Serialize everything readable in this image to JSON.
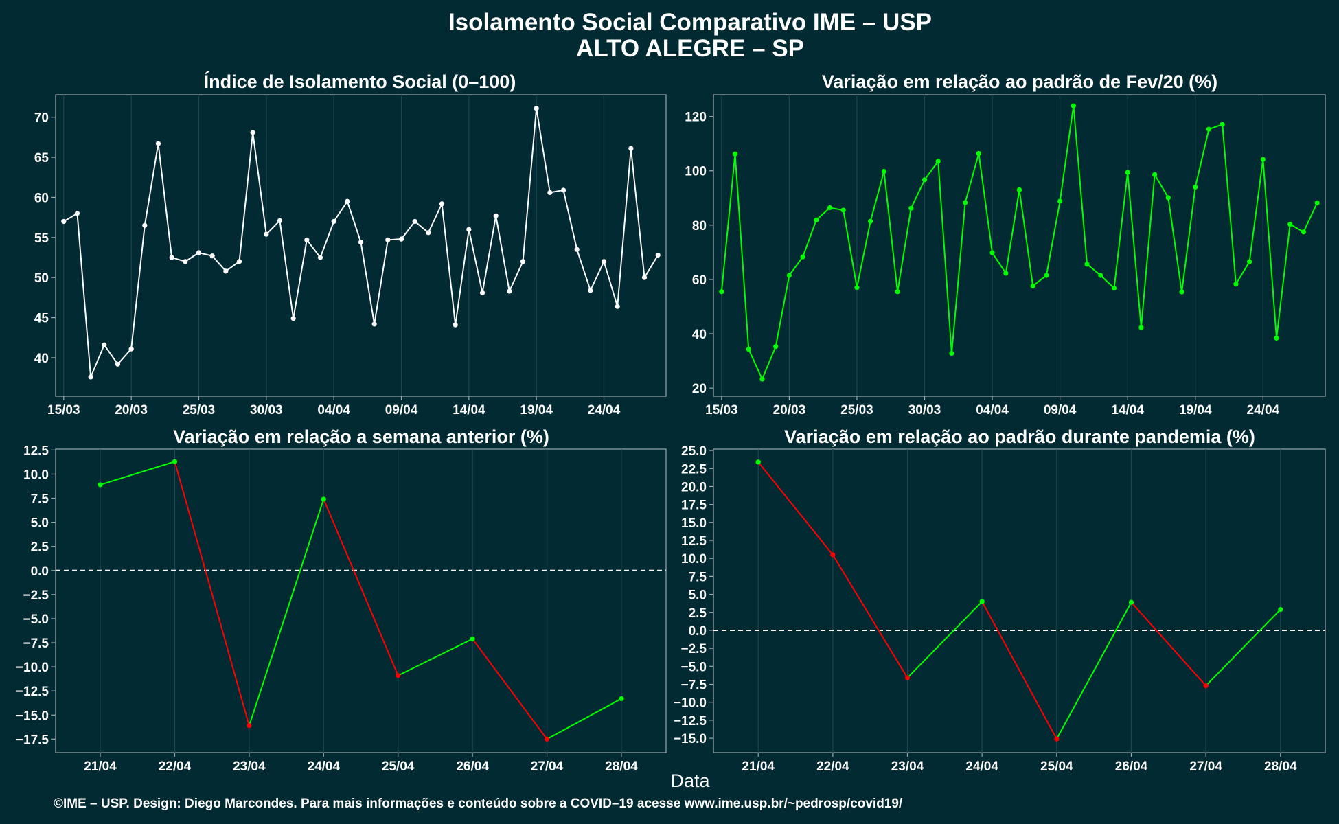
{
  "figure": {
    "title_line1": "Isolamento Social Comparativo IME – USP",
    "title_line2": "ALTO ALEGRE – SP",
    "xlabel": "Data",
    "caption": "©IME – USP. Design: Diego Marcondes. Para mais informações e conteúdo sobre a COVID–19 acesse www.ime.usp.br/~pedrosp/covid19/"
  },
  "colors": {
    "background": "#022a33",
    "white_line": "#ffffff",
    "green": "#00ff00",
    "red": "#ff0000"
  },
  "chart_data": [
    {
      "type": "line",
      "title": "Índice de Isolamento Social (0–100)",
      "xlabel": "",
      "ylabel": "",
      "x_start": "15/03",
      "x_ticks": [
        "15/03",
        "20/03",
        "25/03",
        "30/03",
        "04/04",
        "09/04",
        "14/04",
        "19/04",
        "24/04"
      ],
      "x_tick_days": [
        0,
        5,
        10,
        15,
        20,
        25,
        30,
        35,
        40
      ],
      "xlim": [
        -0.6,
        44.6
      ],
      "ylim": [
        35.2,
        72.8
      ],
      "y_ticks": [
        "40",
        "45",
        "50",
        "55",
        "60",
        "65",
        "70"
      ],
      "y_tick_values": [
        40,
        45,
        50,
        55,
        60,
        65,
        70
      ],
      "grid": true,
      "legend": "none",
      "series": [
        {
          "color": "#ffffff",
          "values": [
            57.0,
            58.0,
            37.6,
            41.6,
            39.2,
            41.1,
            56.5,
            66.7,
            52.5,
            52.0,
            53.1,
            52.7,
            50.8,
            52.0,
            68.1,
            55.4,
            57.1,
            44.9,
            54.7,
            52.5,
            57.0,
            59.5,
            54.4,
            44.2,
            54.7,
            54.8,
            57.0,
            55.6,
            59.2,
            44.1,
            56.0,
            48.1,
            57.7,
            48.3,
            52.0,
            71.1,
            60.6,
            60.9,
            53.5,
            48.4,
            52.0,
            46.4,
            66.1,
            50.0,
            52.8
          ]
        }
      ]
    },
    {
      "type": "line",
      "title": "Variação em relação ao padrão de Fev/20 (%)",
      "xlabel": "",
      "ylabel": "",
      "x_start": "15/03",
      "x_ticks": [
        "15/03",
        "20/03",
        "25/03",
        "30/03",
        "04/04",
        "09/04",
        "14/04",
        "19/04",
        "24/04"
      ],
      "x_tick_days": [
        0,
        5,
        10,
        15,
        20,
        25,
        30,
        35,
        40
      ],
      "xlim": [
        -0.6,
        44.6
      ],
      "ylim": [
        17,
        128
      ],
      "y_ticks": [
        "20",
        "40",
        "60",
        "80",
        "100",
        "120"
      ],
      "y_tick_values": [
        20,
        40,
        60,
        80,
        100,
        120
      ],
      "grid": true,
      "legend": "none",
      "series": [
        {
          "color": "#00ff00",
          "values": [
            55.5,
            106.2,
            34.3,
            23.3,
            35.3,
            61.5,
            68.3,
            81.9,
            86.4,
            85.5,
            57.0,
            81.4,
            99.8,
            55.5,
            86.2,
            96.7,
            103.5,
            32.8,
            88.3,
            106.4,
            69.8,
            62.3,
            93.0,
            57.6,
            61.5,
            88.8,
            123.9,
            65.6,
            61.5,
            56.8,
            99.4,
            42.3,
            98.6,
            90.1,
            55.4,
            94.0,
            115.3,
            117.1,
            58.3,
            66.5,
            104.2,
            38.4,
            80.3,
            77.5,
            88.2
          ]
        }
      ]
    },
    {
      "type": "line",
      "title": "Variação em relação a semana anterior (%)",
      "xlabel": "",
      "ylabel": "",
      "categories": [
        "21/04",
        "22/04",
        "23/04",
        "24/04",
        "25/04",
        "26/04",
        "27/04",
        "28/04"
      ],
      "xlim": [
        -0.6,
        7.6
      ],
      "ylim": [
        -18.9,
        12.6
      ],
      "y_ticks": [
        "12.5",
        "10.0",
        "7.5",
        "5.0",
        "2.5",
        "0.0",
        "−2.5",
        "−5.0",
        "−7.5",
        "−10.0",
        "−12.5",
        "−15.0",
        "−17.5"
      ],
      "y_tick_values": [
        12.5,
        10.0,
        7.5,
        5.0,
        2.5,
        0.0,
        -2.5,
        -5.0,
        -7.5,
        -10.0,
        -12.5,
        -15.0,
        -17.5
      ],
      "reference_line": 0,
      "grid": true,
      "legend": "none",
      "series": [
        {
          "color_up": "#00ff00",
          "color_down": "#ff0000",
          "values": [
            8.9,
            11.3,
            -16.1,
            7.4,
            -10.9,
            -7.1,
            -17.5,
            -13.3
          ]
        }
      ]
    },
    {
      "type": "line",
      "title": "Variação em relação ao padrão durante pandemia (%)",
      "xlabel": "",
      "ylabel": "",
      "categories": [
        "21/04",
        "22/04",
        "23/04",
        "24/04",
        "25/04",
        "26/04",
        "27/04",
        "28/04"
      ],
      "xlim": [
        -0.6,
        7.6
      ],
      "ylim": [
        -17.0,
        25.2
      ],
      "y_ticks": [
        "25.0",
        "22.5",
        "20.0",
        "17.5",
        "15.0",
        "12.5",
        "10.0",
        "7.5",
        "5.0",
        "2.5",
        "0.0",
        "−2.5",
        "−5.0",
        "−7.5",
        "−10.0",
        "−12.5",
        "−15.0"
      ],
      "y_tick_values": [
        25.0,
        22.5,
        20.0,
        17.5,
        15.0,
        12.5,
        10.0,
        7.5,
        5.0,
        2.5,
        0.0,
        -2.5,
        -5.0,
        -7.5,
        -10.0,
        -12.5,
        -15.0
      ],
      "reference_line": 0,
      "grid": true,
      "legend": "none",
      "series": [
        {
          "color_up": "#00ff00",
          "color_down": "#ff0000",
          "values": [
            23.4,
            10.5,
            -6.6,
            4.0,
            -15.1,
            3.9,
            -7.7,
            2.9
          ]
        }
      ]
    }
  ]
}
